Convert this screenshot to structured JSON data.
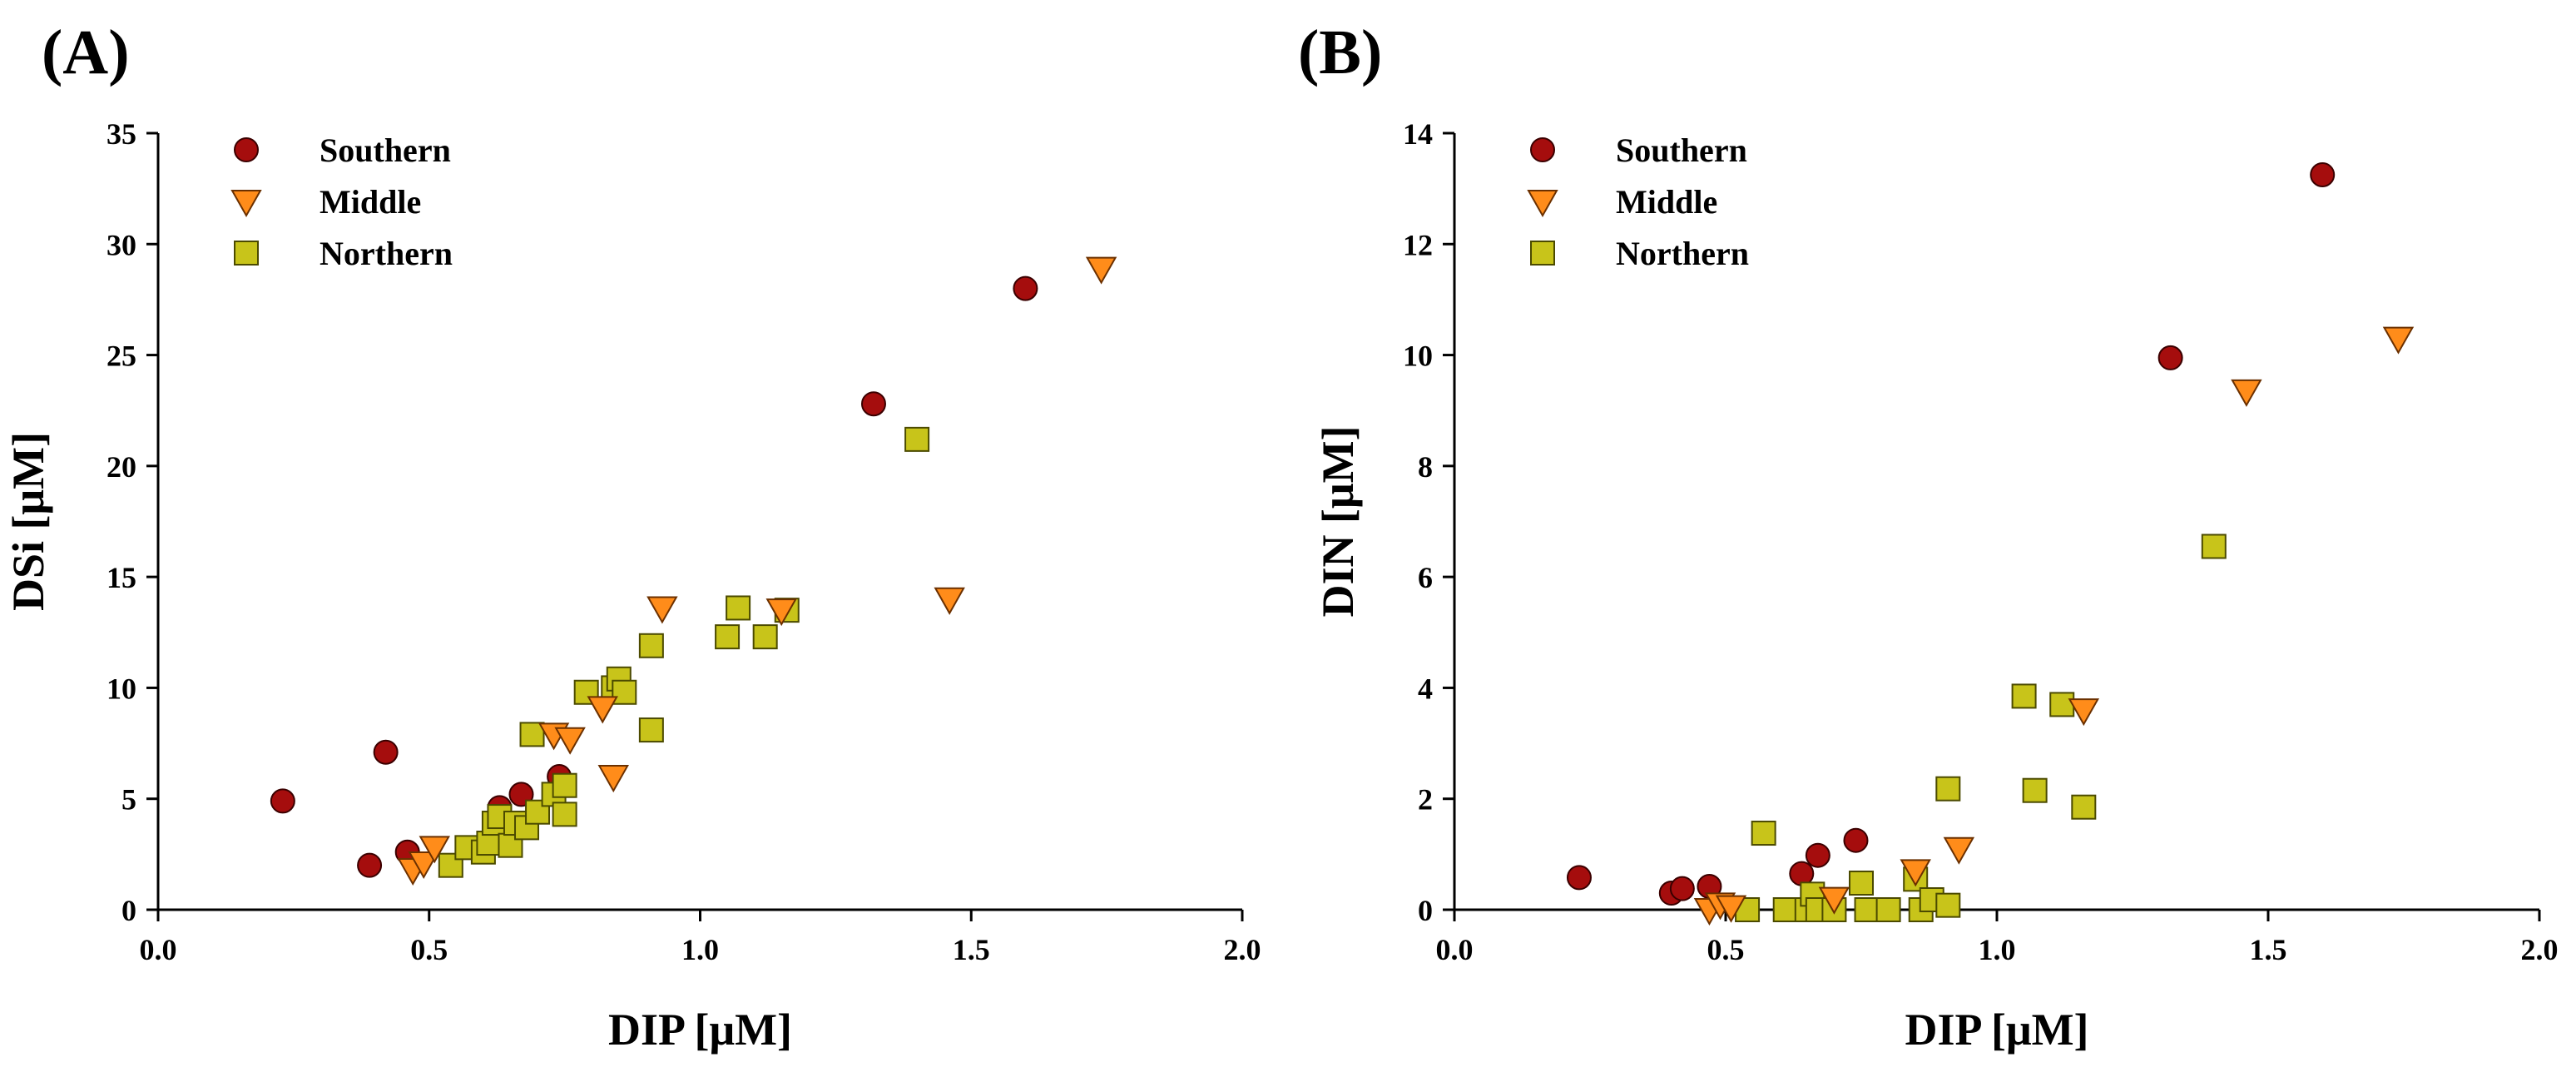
{
  "chart_data": [
    {
      "panel": "(A)",
      "type": "scatter",
      "xlabel": "DIP [μM]",
      "ylabel": "DSi [μM]",
      "xlim": [
        0.0,
        2.0
      ],
      "ylim": [
        0,
        35
      ],
      "xticks": [
        "0.0",
        "0.5",
        "1.0",
        "1.5",
        "2.0"
      ],
      "yticks": [
        "0",
        "5",
        "10",
        "15",
        "20",
        "25",
        "30",
        "35"
      ],
      "grid": false,
      "legend": "top-left",
      "series": [
        {
          "name": "Southern",
          "marker": "circle",
          "color": "#a50d0d",
          "points": [
            [
              0.23,
              4.9
            ],
            [
              0.39,
              2.0
            ],
            [
              0.42,
              7.1
            ],
            [
              0.46,
              2.6
            ],
            [
              0.63,
              4.6
            ],
            [
              0.67,
              5.2
            ],
            [
              0.74,
              6.0
            ],
            [
              1.32,
              22.8
            ],
            [
              1.6,
              28.0
            ]
          ]
        },
        {
          "name": "Middle",
          "marker": "triangle-down",
          "color": "#ff8c1a",
          "points": [
            [
              0.47,
              1.8
            ],
            [
              0.49,
              2.1
            ],
            [
              0.51,
              2.8
            ],
            [
              0.73,
              7.9
            ],
            [
              0.76,
              7.7
            ],
            [
              0.82,
              9.1
            ],
            [
              0.84,
              6.0
            ],
            [
              0.93,
              13.6
            ],
            [
              1.15,
              13.5
            ],
            [
              1.46,
              14.0
            ],
            [
              1.74,
              28.9
            ]
          ]
        },
        {
          "name": "Northern",
          "marker": "square",
          "color": "#c8c41a",
          "points": [
            [
              0.54,
              2.0
            ],
            [
              0.57,
              2.8
            ],
            [
              0.6,
              2.6
            ],
            [
              0.61,
              3.0
            ],
            [
              0.62,
              3.9
            ],
            [
              0.63,
              4.2
            ],
            [
              0.65,
              2.9
            ],
            [
              0.66,
              3.9
            ],
            [
              0.68,
              3.7
            ],
            [
              0.69,
              7.9
            ],
            [
              0.7,
              4.4
            ],
            [
              0.73,
              5.2
            ],
            [
              0.75,
              4.3
            ],
            [
              0.75,
              5.6
            ],
            [
              0.79,
              9.8
            ],
            [
              0.84,
              10.0
            ],
            [
              0.85,
              10.4
            ],
            [
              0.86,
              9.8
            ],
            [
              0.91,
              8.1
            ],
            [
              0.91,
              11.9
            ],
            [
              1.05,
              12.3
            ],
            [
              1.07,
              13.6
            ],
            [
              1.12,
              12.3
            ],
            [
              1.16,
              13.5
            ],
            [
              1.4,
              21.2
            ]
          ]
        }
      ]
    },
    {
      "panel": "(B)",
      "type": "scatter",
      "xlabel": "DIP [μM]",
      "ylabel": "DIN [μM]",
      "xlim": [
        0.0,
        2.0
      ],
      "ylim": [
        0,
        14
      ],
      "xticks": [
        "0.0",
        "0.5",
        "1.0",
        "1.5",
        "2.0"
      ],
      "yticks": [
        "0",
        "2",
        "4",
        "6",
        "8",
        "10",
        "12",
        "14"
      ],
      "grid": false,
      "legend": "top-left",
      "series": [
        {
          "name": "Southern",
          "marker": "circle",
          "color": "#a50d0d",
          "points": [
            [
              0.23,
              0.58
            ],
            [
              0.4,
              0.3
            ],
            [
              0.42,
              0.38
            ],
            [
              0.47,
              0.42
            ],
            [
              0.64,
              0.65
            ],
            [
              0.67,
              0.98
            ],
            [
              0.74,
              1.25
            ],
            [
              1.32,
              9.95
            ],
            [
              1.6,
              13.25
            ]
          ]
        },
        {
          "name": "Middle",
          "marker": "triangle-down",
          "color": "#ff8c1a",
          "points": [
            [
              0.47,
              0.0
            ],
            [
              0.49,
              0.1
            ],
            [
              0.51,
              0.05
            ],
            [
              0.7,
              0.2
            ],
            [
              0.85,
              0.7
            ],
            [
              0.93,
              1.1
            ],
            [
              1.16,
              3.6
            ],
            [
              1.46,
              9.35
            ],
            [
              1.74,
              10.3
            ]
          ]
        },
        {
          "name": "Northern",
          "marker": "square",
          "color": "#c8c41a",
          "points": [
            [
              0.54,
              0.0
            ],
            [
              0.57,
              1.38
            ],
            [
              0.61,
              0.0
            ],
            [
              0.65,
              0.0
            ],
            [
              0.66,
              0.28
            ],
            [
              0.67,
              0.0
            ],
            [
              0.7,
              0.0
            ],
            [
              0.75,
              0.48
            ],
            [
              0.76,
              0.0
            ],
            [
              0.8,
              0.0
            ],
            [
              0.85,
              0.55
            ],
            [
              0.86,
              0.0
            ],
            [
              0.88,
              0.18
            ],
            [
              0.91,
              0.08
            ],
            [
              0.91,
              2.18
            ],
            [
              1.05,
              3.85
            ],
            [
              1.07,
              2.15
            ],
            [
              1.12,
              3.7
            ],
            [
              1.16,
              1.85
            ],
            [
              1.4,
              6.55
            ]
          ]
        }
      ]
    }
  ]
}
